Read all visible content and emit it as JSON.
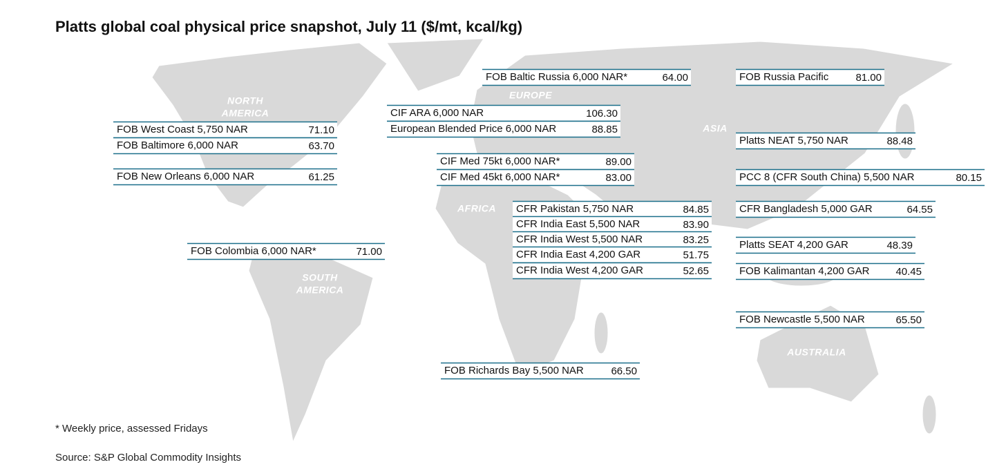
{
  "title": "Platts global coal physical price snapshot, July 11 ($/mt, kcal/kg)",
  "regions": [
    {
      "lines": [
        "NORTH",
        "AMERICA"
      ]
    },
    {
      "lines": [
        "EUROPE"
      ]
    },
    {
      "lines": [
        "ASIA"
      ]
    },
    {
      "lines": [
        "AFRICA"
      ]
    },
    {
      "lines": [
        "SOUTH",
        "AMERICA"
      ]
    },
    {
      "lines": [
        "AUSTRALIA"
      ]
    }
  ],
  "prices": [
    {
      "name": "FOB Baltic Russia 6,000 NAR*",
      "value": "64.00"
    },
    {
      "name": "FOB Russia Pacific",
      "value": "81.00"
    },
    {
      "name": "CIF ARA 6,000 NAR",
      "value": "106.30"
    },
    {
      "name": "European Blended Price 6,000 NAR",
      "value": "88.85"
    },
    {
      "name": "FOB West Coast 5,750 NAR",
      "value": "71.10"
    },
    {
      "name": "FOB Baltimore 6,000 NAR",
      "value": "63.70"
    },
    {
      "name": "FOB New Orleans 6,000 NAR",
      "value": "61.25"
    },
    {
      "name": "CIF Med 75kt 6,000 NAR*",
      "value": "89.00"
    },
    {
      "name": "CIF Med 45kt 6,000 NAR*",
      "value": "83.00"
    },
    {
      "name": "Platts NEAT 5,750 NAR",
      "value": "88.48"
    },
    {
      "name": "PCC 8 (CFR South China) 5,500 NAR",
      "value": "80.15"
    },
    {
      "name": "CFR Pakistan 5,750 NAR",
      "value": "84.85"
    },
    {
      "name": "CFR India East 5,500 NAR",
      "value": "83.90"
    },
    {
      "name": "CFR India West 5,500 NAR",
      "value": "83.25"
    },
    {
      "name": "CFR India East 4,200 GAR",
      "value": "51.75"
    },
    {
      "name": "CFR India West 4,200 GAR",
      "value": "52.65"
    },
    {
      "name": "CFR Bangladesh 5,000 GAR",
      "value": "64.55"
    },
    {
      "name": "Platts SEAT 4,200 GAR",
      "value": "48.39"
    },
    {
      "name": "FOB Kalimantan 4,200 GAR",
      "value": "40.45"
    },
    {
      "name": "FOB Newcastle 5,500 NAR",
      "value": "65.50"
    },
    {
      "name": "FOB Colombia 6,000 NAR*",
      "value": "71.00"
    },
    {
      "name": "FOB Richards Bay 5,500 NAR",
      "value": "66.50"
    }
  ],
  "footnote": "* Weekly price, assessed Fridays",
  "source": "Source: S&P Global Commodity Insights"
}
